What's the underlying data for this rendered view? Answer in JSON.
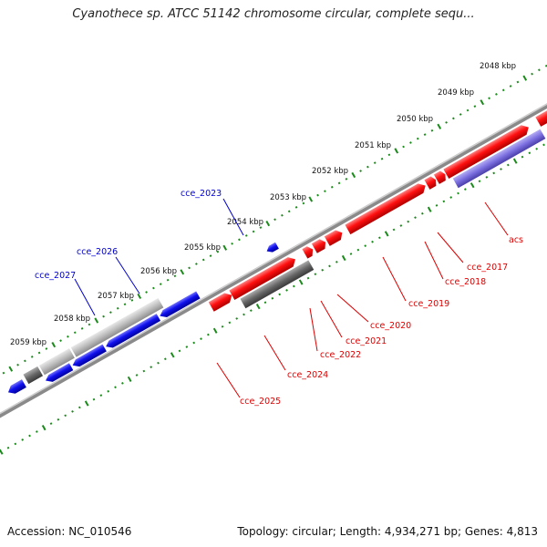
{
  "title": "Cyanothece sp. ATCC 51142 chromosome circular, complete sequ...",
  "footer": {
    "accession": "Accession: NC_010546",
    "summary": "Topology: circular; Length: 4,934,271 bp; Genes: 4,813"
  },
  "ticks": [
    "2048 kbp",
    "2049 kbp",
    "2050 kbp",
    "2051 kbp",
    "2052 kbp",
    "2053 kbp",
    "2054 kbp",
    "2055 kbp",
    "2056 kbp",
    "2057 kbp",
    "2058 kbp",
    "2059 kbp"
  ],
  "gene_labels_top": [
    "cce_2023",
    "cce_2026",
    "cce_2027"
  ],
  "gene_labels_bottom": [
    "acs",
    "cce_2017",
    "cce_2018",
    "cce_2019",
    "cce_2020",
    "cce_2021",
    "cce_2022",
    "cce_2024",
    "cce_2025"
  ],
  "colors": {
    "forward_strand_gene": "#ff0000",
    "reverse_strand_gene": "#0000ee",
    "pseudo_or_other": "#777777",
    "highlight": "#7a6ee0",
    "tick": "#1a8a1a",
    "backbone": "#888888"
  }
}
